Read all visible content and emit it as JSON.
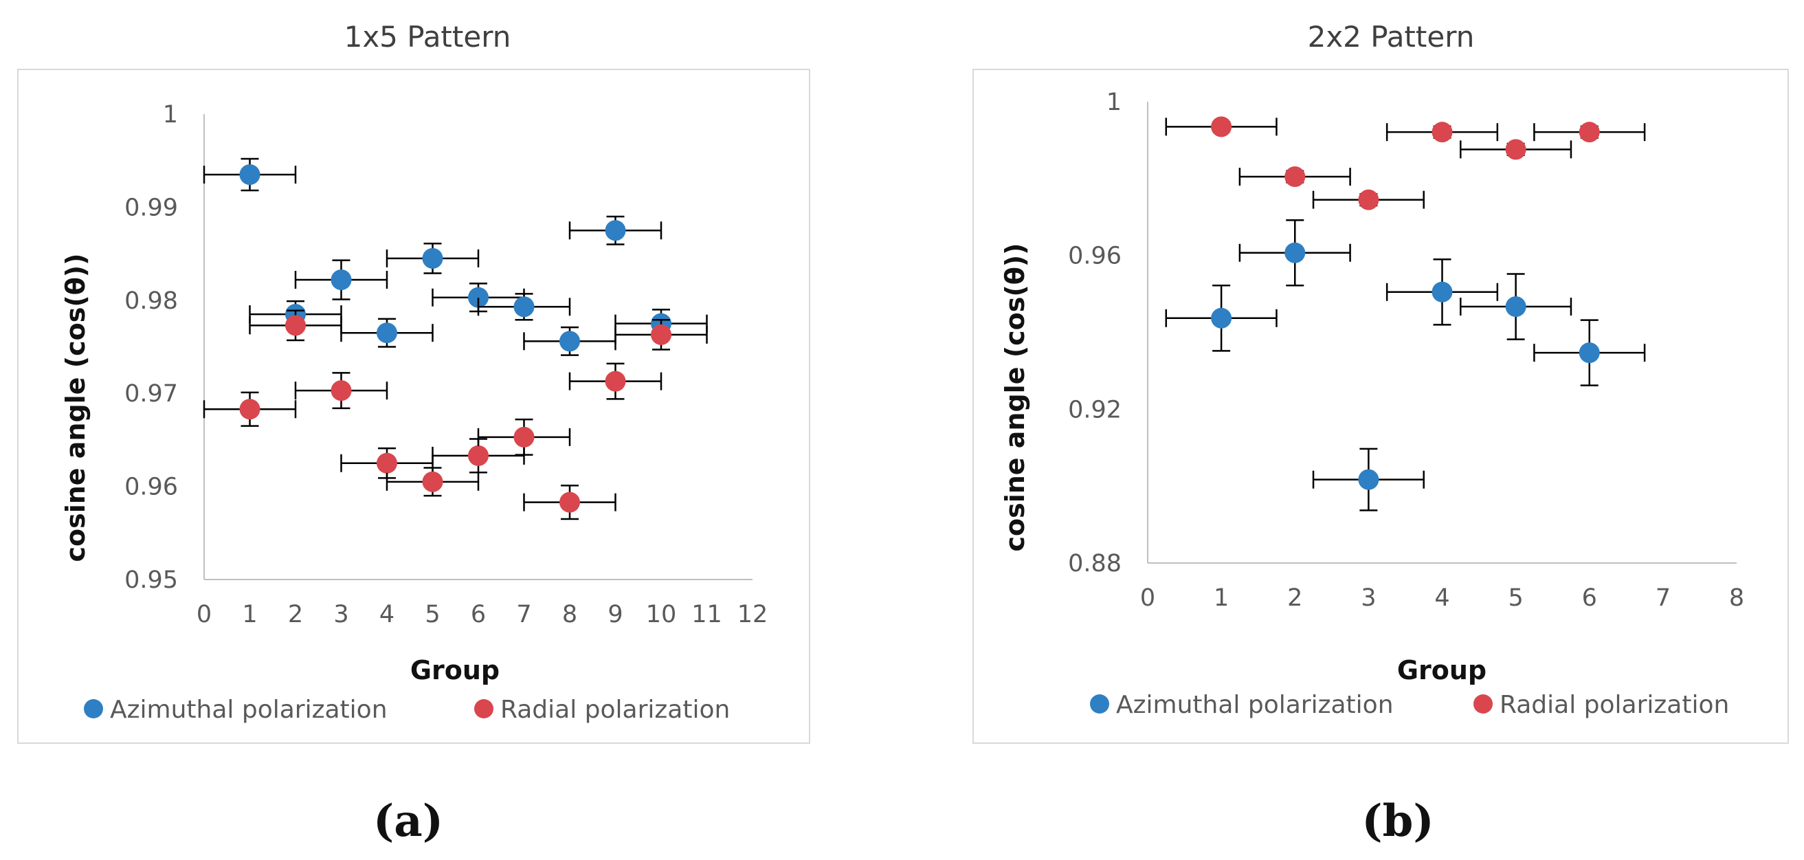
{
  "colors": {
    "azimuthal": "#2e7fc3",
    "radial": "#d9464e",
    "axis": "#bfbfbf",
    "frame": "#d9d9d9",
    "error_bar": "#000000"
  },
  "chart_data": [
    {
      "type": "scatter",
      "title": "1x5 Pattern",
      "xlabel": "Group",
      "ylabel": "cosine angle  (cos(θ))",
      "xlim": [
        0,
        12
      ],
      "ylim": [
        0.95,
        1
      ],
      "xticks": [
        0,
        1,
        2,
        3,
        4,
        5,
        6,
        7,
        8,
        9,
        10,
        11,
        12
      ],
      "yticks": [
        0.95,
        0.96,
        0.97,
        0.98,
        0.99,
        1
      ],
      "ytick_labels": [
        "0.95",
        "0.96",
        "0.97",
        "0.98",
        "0.99",
        "1"
      ],
      "x_error": 1,
      "caption": "(a)",
      "series": [
        {
          "name": "Azimuthal polarization",
          "color_key": "azimuthal",
          "x": [
            1,
            2,
            3,
            4,
            5,
            6,
            7,
            8,
            9,
            10
          ],
          "y": [
            0.9935,
            0.9785,
            0.9822,
            0.9765,
            0.9845,
            0.9803,
            0.9793,
            0.9756,
            0.9875,
            0.9775
          ],
          "y_error": [
            0.0017,
            0.0014,
            0.0021,
            0.0015,
            0.0016,
            0.0015,
            0.0014,
            0.0015,
            0.0015,
            0.0015
          ]
        },
        {
          "name": "Radial polarization",
          "color_key": "radial",
          "x": [
            1,
            2,
            3,
            4,
            5,
            6,
            7,
            8,
            9,
            10
          ],
          "y": [
            0.9683,
            0.9773,
            0.9703,
            0.9625,
            0.9605,
            0.9633,
            0.9653,
            0.9583,
            0.9713,
            0.9763
          ],
          "y_error": [
            0.0018,
            0.0016,
            0.0019,
            0.0016,
            0.0015,
            0.0018,
            0.0019,
            0.0018,
            0.0019,
            0.0016
          ]
        }
      ]
    },
    {
      "type": "scatter",
      "title": "2x2 Pattern",
      "xlabel": "Group",
      "ylabel": "cosine angle  (cos(θ))",
      "xlim": [
        0,
        8
      ],
      "ylim": [
        0.88,
        1
      ],
      "xticks": [
        0,
        1,
        2,
        3,
        4,
        5,
        6,
        7,
        8
      ],
      "yticks": [
        0.88,
        0.92,
        0.96,
        1
      ],
      "ytick_labels": [
        "0.88",
        "0.92",
        "0.96",
        "1"
      ],
      "x_error": 0.75,
      "caption": "(b)",
      "series": [
        {
          "name": "Azimuthal polarization",
          "color_key": "azimuthal",
          "x": [
            1,
            2,
            3,
            4,
            5,
            6
          ],
          "y": [
            0.9437,
            0.9607,
            0.9017,
            0.9505,
            0.9467,
            0.9347
          ],
          "y_error": [
            0.0085,
            0.0085,
            0.008,
            0.0085,
            0.0085,
            0.0085
          ]
        },
        {
          "name": "Radial polarization",
          "color_key": "radial",
          "x": [
            1,
            2,
            3,
            4,
            5,
            6
          ],
          "y": [
            0.9935,
            0.9805,
            0.9745,
            0.9921,
            0.9876,
            0.9921
          ],
          "y_error": [
            0.0012,
            0.0015,
            0.0015,
            0.0015,
            0.0015,
            0.0015
          ]
        }
      ]
    }
  ]
}
